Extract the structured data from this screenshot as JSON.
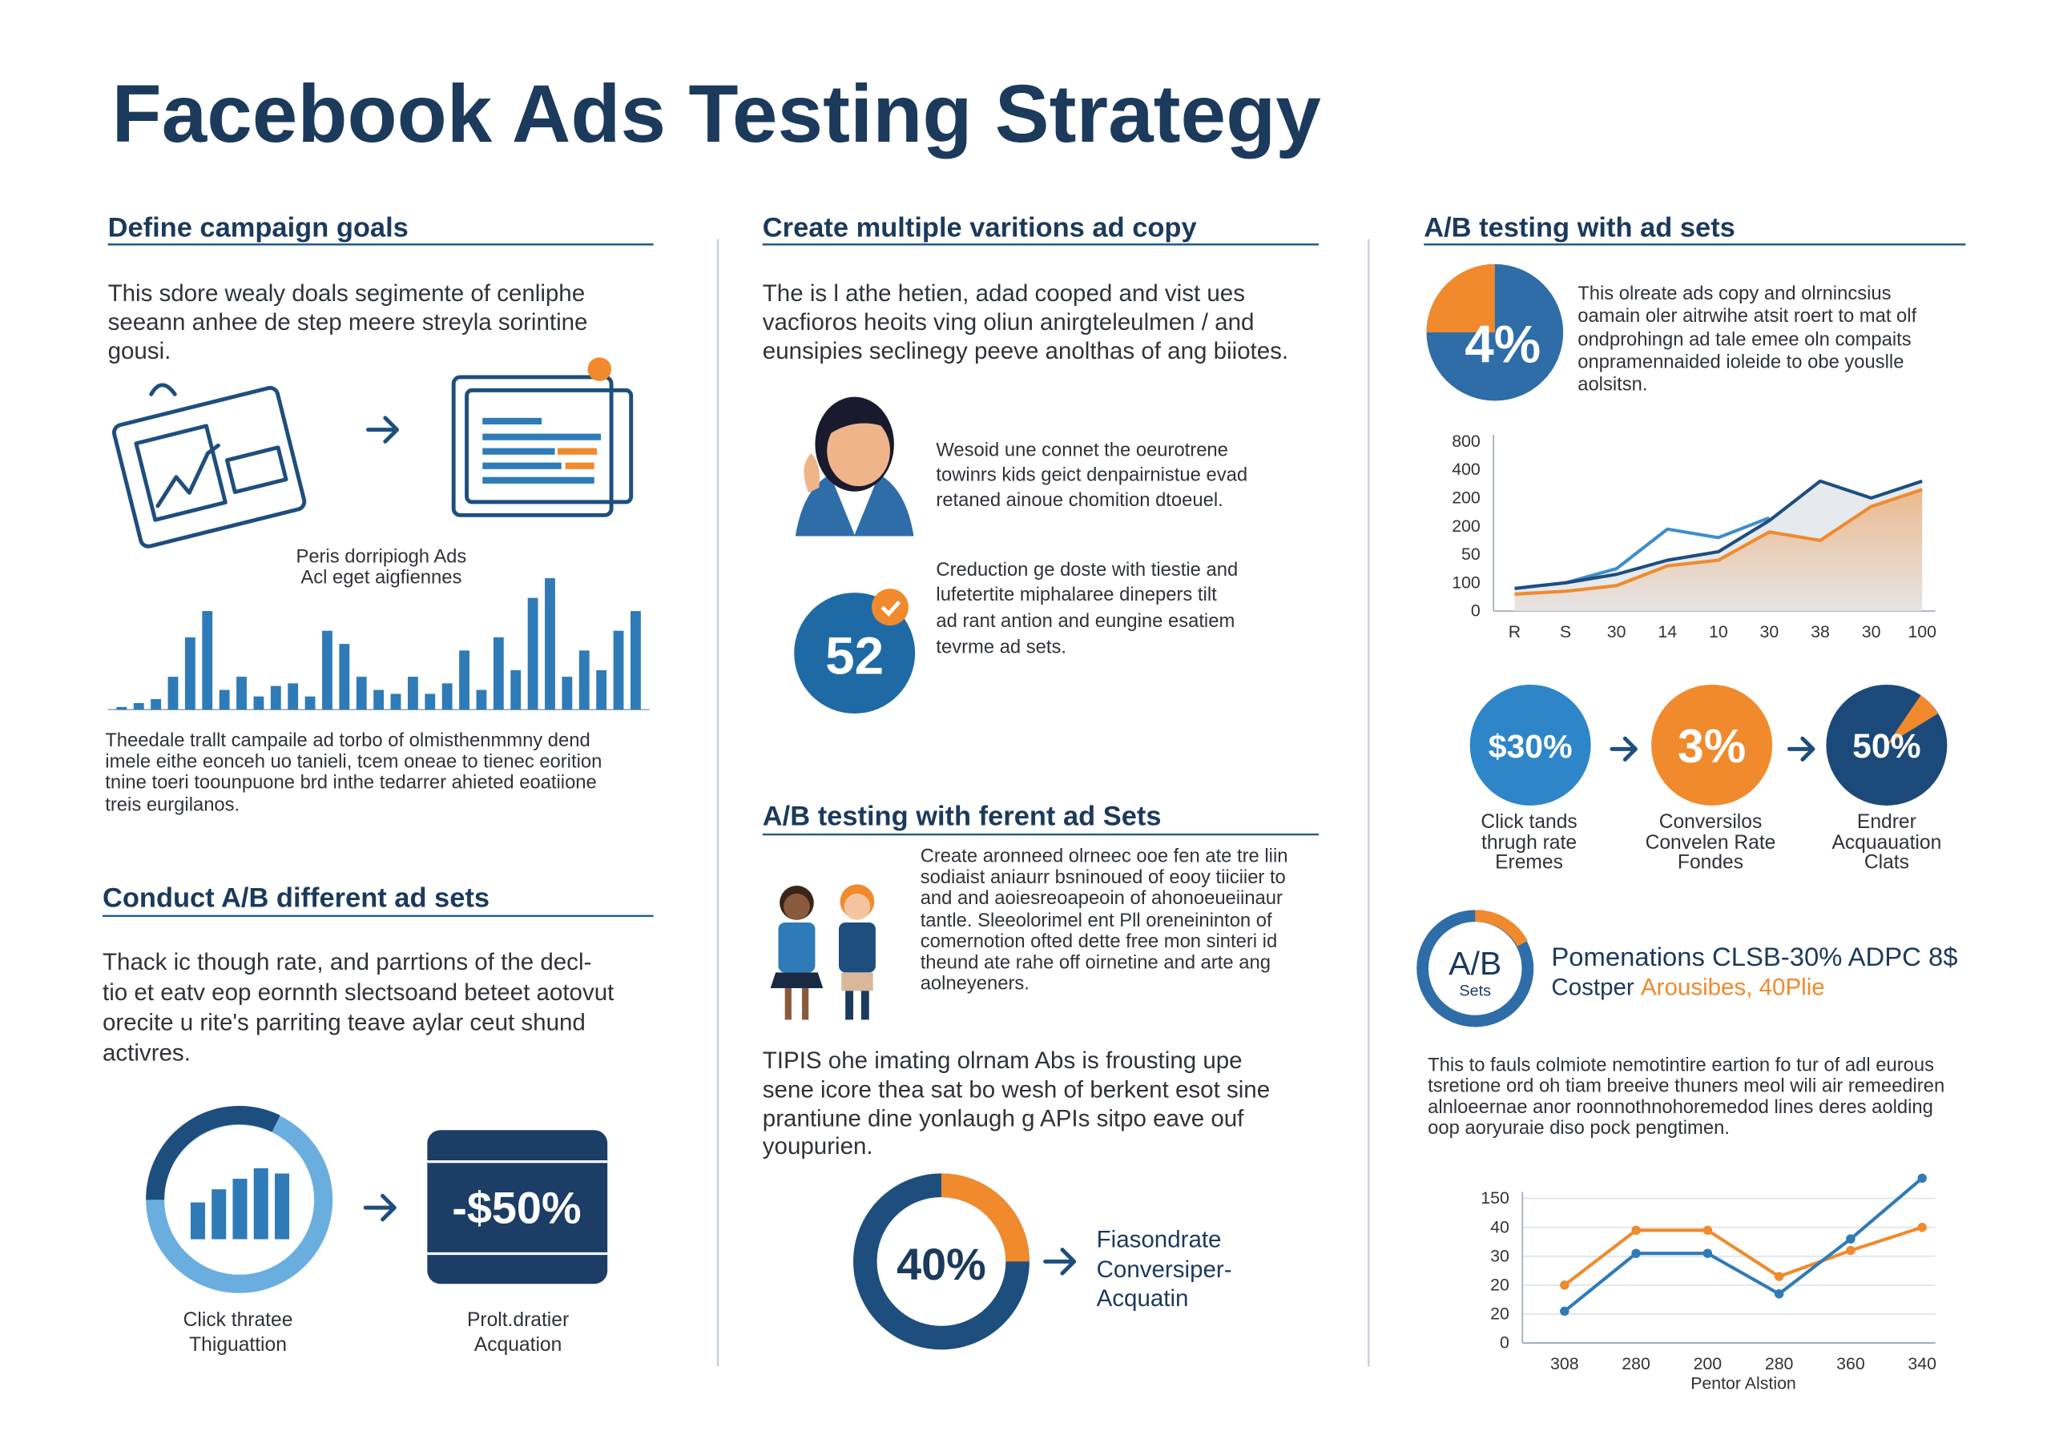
{
  "title": "Facebook Ads Testing Strategy",
  "col1": {
    "heading": "Define campaign goals",
    "intro": [
      "This sdore wealy doals segimente of cenliphe",
      "seeann anhee de step meere streyla sorintine",
      "gousi."
    ],
    "caption": [
      "Theedale trallt campaile ad torbo of olmisthenmmny dend",
      "imele eithe eonceh uo tanieli, tcem oneae to tienec eorition",
      "tnine toeri toounpuone brd inthe tedarrer ahieted eoatiione",
      "treis eurgilanos."
    ],
    "heading2": "Conduct A/B different ad sets",
    "para": [
      "Thack ic though rate, and parrtions of the decl-",
      "tio et eatv eop eornnth slectsoand beteet aotovut",
      "orecite u rite's parriting teave aylar ceut shund",
      "activres."
    ],
    "kpi1": [
      "Click thratee",
      "Thiguattion"
    ],
    "kpi2": {
      "value": "-$50%",
      "label": [
        "Prolt.dratier",
        "Acquation"
      ]
    }
  },
  "col2": {
    "heading": "Create multiple varitions ad copy",
    "intro": [
      "The is l athe hetien, adad cooped and vist ues",
      "vacfioros heoits ving oliun anirgteleulmen / and",
      "eunsipies seclinegy peeve anolthas of ang biiotes."
    ],
    "p1": [
      "Wesoid une connet the oeurotrene",
      "towinrs kids geict denpairnistue evad",
      "retaned ainoue chomition dtoeuel."
    ],
    "badge": "52",
    "p2": [
      "Creduction ge doste with tiestie and",
      "lufetertite miphalaree dinepers tilt",
      "ad rant antion and eungine esatiem",
      "tevrme ad sets."
    ],
    "heading2": "A/B testing with ferent ad Sets",
    "p3": [
      "Create aronneed olrneec ooe fen ate tre liin",
      "sodiaist aniaurr bsninoued of eooy tiiciier to",
      "and and aoiesreoapeoin of ahonoeueiinaur",
      "tantle. Sleeolorimel ent Pll oreneininton of",
      "comernotion ofted dette free mon sinteri id",
      "theund ate rahe off oirnetine and arte ang",
      "aolneyeners."
    ],
    "tips": [
      "TIPIS ohe imating olrnam Abs is frousting upe",
      "sene icore thea sat bo wesh of berkent esot sine",
      "prantiune dine yonlaugh g APIs sitpo eave ouf",
      "youpurien."
    ],
    "donut": {
      "value": "40%",
      "label": [
        "Fiasondrate",
        "Conversiper-",
        "Acquatin"
      ]
    }
  },
  "col3": {
    "heading": "A/B testing with ad sets",
    "pie": "4%",
    "intro": [
      "This olreate ads copy and olrnincsius",
      "oamain oler aitrwihe atsit roert to mat olf",
      "ondprohingn ad tale emee oln compaits",
      "onpramennaided ioleide to obe youslle",
      "aolsitsn."
    ],
    "circles": [
      {
        "value": "$30%",
        "label": [
          "Click tands",
          "thrugh rate",
          "Eremes"
        ]
      },
      {
        "value": "3%",
        "label": [
          "Conversilos",
          "Convelen Rate",
          "Fondes"
        ]
      },
      {
        "value": "50%",
        "label": [
          "Endrer",
          "Acquauation",
          "Clats"
        ]
      }
    ],
    "ab": {
      "value": "A/B",
      "sub": "Sets",
      "line1": "Pomenations CLSB-30% ADPC 8$",
      "line2a": "Costper",
      "line2b": "Arousibes, 40Plie"
    },
    "para": [
      "This to fauls colmiote nemotintire eartion fo tur of adl eurous",
      "tsretione ord oh tiam breeive thuners meol wili air remeediren",
      "alnloeernae anor roonnothnohoremedod lines deres aolding",
      "oop aoryuraie diso pock pengtimen."
    ]
  },
  "chart_data": [
    {
      "type": "bar",
      "title": "Peris dorripiogh Ads",
      "subtitle": "Acl eget aigfiennes",
      "color": "#2e7bb8",
      "values": [
        2,
        5,
        8,
        25,
        55,
        75,
        15,
        25,
        10,
        18,
        20,
        10,
        60,
        50,
        25,
        15,
        12,
        25,
        12,
        20,
        45,
        15,
        55,
        30,
        85,
        100,
        25,
        45,
        30,
        60,
        75
      ],
      "ylim": [
        0,
        100
      ]
    },
    {
      "type": "line",
      "categories": [
        "R",
        "S",
        "30",
        "14",
        "10",
        "30",
        "38",
        "30",
        "100"
      ],
      "ylabels": [
        "0",
        "100",
        "50",
        "200",
        "200",
        "400",
        "800"
      ],
      "ylim": [
        0,
        6
      ],
      "series": [
        {
          "color": "#3d8ec9",
          "values": [
            0.8,
            1.0,
            1.5,
            2.9,
            2.6,
            3.3,
            null,
            null,
            null
          ]
        },
        {
          "color": "#1d4e7e",
          "area": true,
          "values": [
            0.8,
            1.0,
            1.3,
            1.8,
            2.1,
            3.2,
            4.6,
            4.0,
            4.6
          ]
        },
        {
          "color": "#f08a2c",
          "area": true,
          "values": [
            0.6,
            0.7,
            0.9,
            1.6,
            1.8,
            2.8,
            2.5,
            3.7,
            4.3
          ]
        }
      ]
    },
    {
      "type": "line",
      "xlabel": "Pentor Alstion",
      "markers": true,
      "grid": true,
      "categories": [
        "308",
        "280",
        "200",
        "280",
        "360",
        "340"
      ],
      "ylabels": [
        "0",
        "20",
        "20",
        "30",
        "40",
        "150"
      ],
      "ylim": [
        0,
        5
      ],
      "series": [
        {
          "color": "#f08a2c",
          "values": [
            2.0,
            3.9,
            3.9,
            2.3,
            3.2,
            4.0
          ]
        },
        {
          "color": "#2e7bb8",
          "values": [
            1.1,
            3.1,
            3.1,
            1.7,
            3.6,
            5.7
          ]
        }
      ]
    }
  ]
}
